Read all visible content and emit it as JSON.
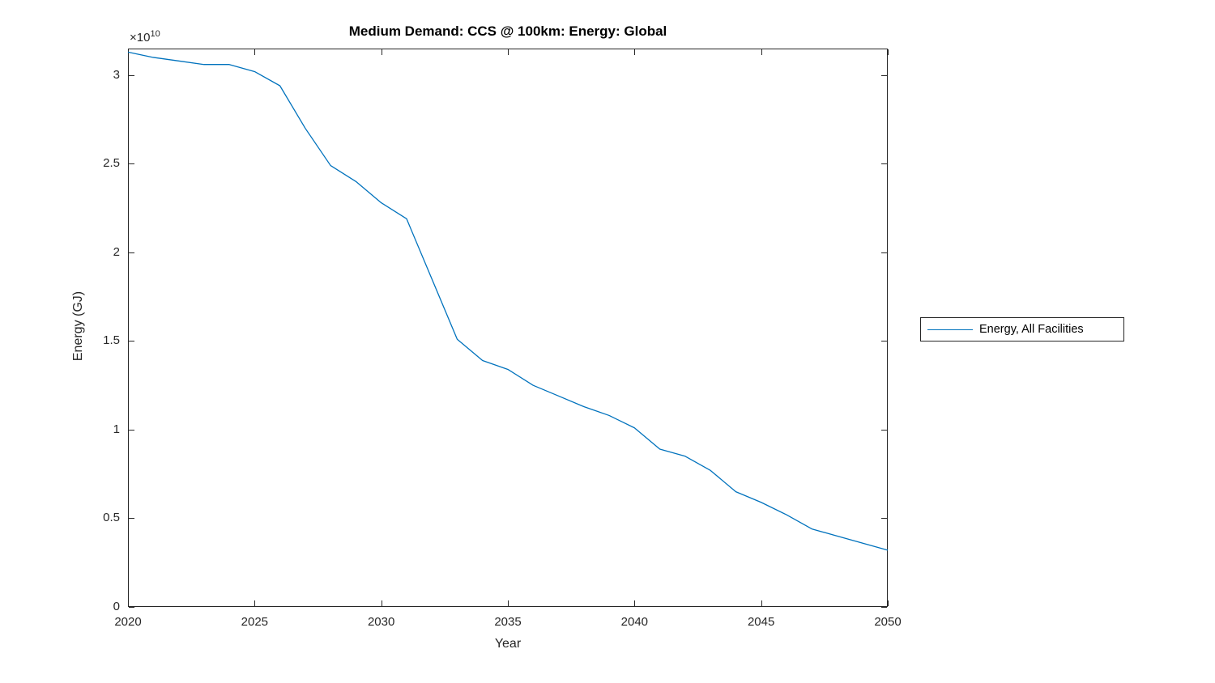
{
  "figure": {
    "title": "Medium Demand: CCS @ 100km: Energy: Global",
    "xlabel": "Year",
    "ylabel": "Energy (GJ)",
    "y_multiplier": {
      "base": "×10",
      "exp": "10"
    },
    "legend": {
      "entries": [
        {
          "label": "Energy, All Facilities",
          "color": "#0072BD"
        }
      ]
    },
    "colors": {
      "line": "#0072BD",
      "axis": "#262626",
      "background": "#ffffff"
    }
  },
  "chart_data": {
    "type": "line",
    "title": "Medium Demand: CCS @ 100km: Energy: Global",
    "xlabel": "Year",
    "ylabel": "Energy (GJ)",
    "y_axis_multiplier": "×10^10",
    "grid": false,
    "legend_position": "right-outside",
    "xlim": [
      2020,
      2050
    ],
    "ylim": [
      0,
      31500000000.0
    ],
    "x_ticks": [
      2020,
      2025,
      2030,
      2035,
      2040,
      2045,
      2050
    ],
    "y_ticks": [
      0,
      5000000000.0,
      10000000000.0,
      15000000000.0,
      20000000000.0,
      25000000000.0,
      30000000000.0
    ],
    "y_tick_labels": [
      "0",
      "0.5",
      "1",
      "1.5",
      "2",
      "2.5",
      "3"
    ],
    "x": [
      2020,
      2021,
      2022,
      2023,
      2024,
      2025,
      2026,
      2027,
      2028,
      2029,
      2030,
      2031,
      2032,
      2033,
      2034,
      2035,
      2036,
      2037,
      2038,
      2039,
      2040,
      2041,
      2042,
      2043,
      2044,
      2045,
      2046,
      2047,
      2048,
      2049,
      2050
    ],
    "series": [
      {
        "name": "Energy, All Facilities",
        "color": "#0072BD",
        "values": [
          31300000000.0,
          31000000000.0,
          30800000000.0,
          30600000000.0,
          30600000000.0,
          30200000000.0,
          29400000000.0,
          27000000000.0,
          24900000000.0,
          24000000000.0,
          22800000000.0,
          21900000000.0,
          18500000000.0,
          15100000000.0,
          13900000000.0,
          13400000000.0,
          12500000000.0,
          11900000000.0,
          11300000000.0,
          10800000000.0,
          10100000000.0,
          8900000000.0,
          8500000000.0,
          7700000000.0,
          6500000000.0,
          5900000000.0,
          5200000000.0,
          4400000000.0,
          4000000000.0,
          3600000000.0,
          3200000000.0
        ]
      }
    ]
  },
  "layout_note": ""
}
